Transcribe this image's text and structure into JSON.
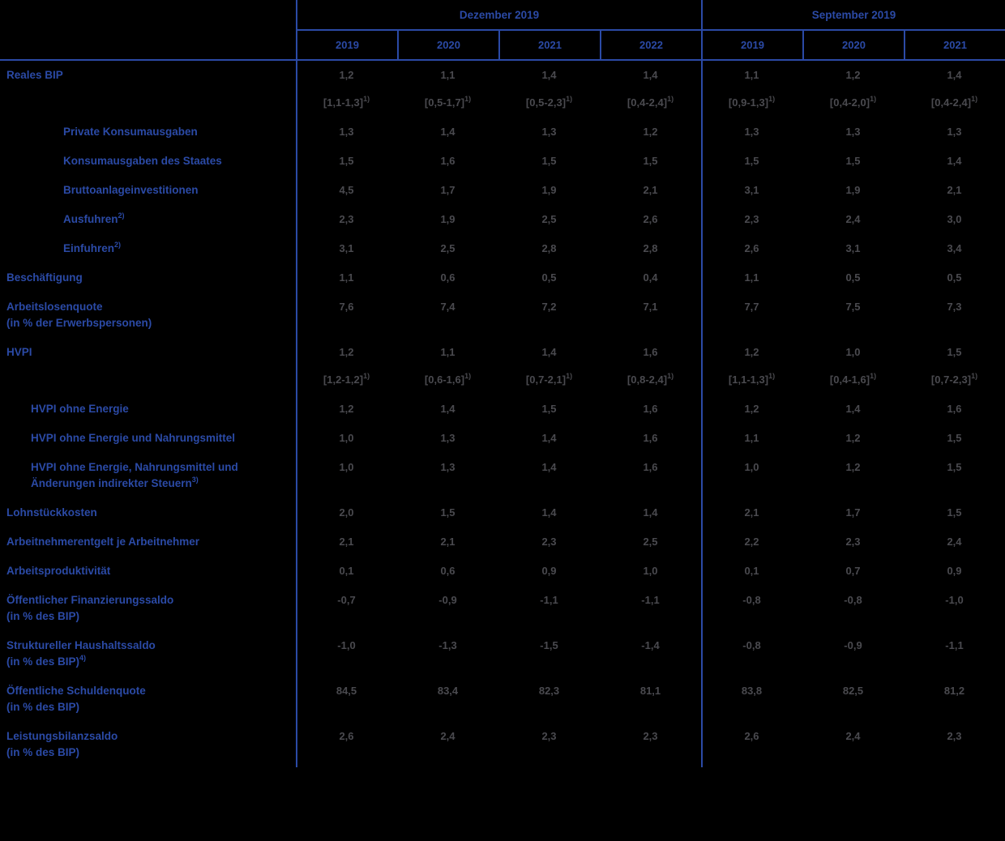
{
  "header": {
    "groups": [
      {
        "label": "Dezember 2019",
        "span": 4
      },
      {
        "label": "September 2019",
        "span": 3
      }
    ],
    "years": [
      "2019",
      "2020",
      "2021",
      "2022",
      "2019",
      "2020",
      "2021"
    ]
  },
  "rows": [
    {
      "type": "data",
      "indent": 0,
      "label": "Reales BIP",
      "values": [
        "1,2",
        "1,1",
        "1,4",
        "1,4",
        "1,1",
        "1,2",
        "1,4"
      ]
    },
    {
      "type": "range",
      "sup": "1)",
      "values": [
        "[1,1-1,3]",
        "[0,5-1,7]",
        "[0,5-2,3]",
        "[0,4-2,4]",
        "[0,9-1,3]",
        "[0,4-2,0]",
        "[0,4-2,4]"
      ]
    },
    {
      "type": "data",
      "indent": 1,
      "label": "Private Konsumausgaben",
      "values": [
        "1,3",
        "1,4",
        "1,3",
        "1,2",
        "1,3",
        "1,3",
        "1,3"
      ]
    },
    {
      "type": "data",
      "indent": 1,
      "label": "Konsumausgaben des Staates",
      "values": [
        "1,5",
        "1,6",
        "1,5",
        "1,5",
        "1,5",
        "1,5",
        "1,4"
      ]
    },
    {
      "type": "data",
      "indent": 1,
      "label": "Bruttoanlageinvestitionen",
      "values": [
        "4,5",
        "1,7",
        "1,9",
        "2,1",
        "3,1",
        "1,9",
        "2,1"
      ]
    },
    {
      "type": "data",
      "indent": 1,
      "label": "Ausfuhren",
      "label_sup": "2)",
      "values": [
        "2,3",
        "1,9",
        "2,5",
        "2,6",
        "2,3",
        "2,4",
        "3,0"
      ]
    },
    {
      "type": "data",
      "indent": 1,
      "label": "Einfuhren",
      "label_sup": "2)",
      "values": [
        "3,1",
        "2,5",
        "2,8",
        "2,8",
        "2,6",
        "3,1",
        "3,4"
      ]
    },
    {
      "type": "data",
      "indent": 0,
      "label": "Beschäftigung",
      "values": [
        "1,1",
        "0,6",
        "0,5",
        "0,4",
        "1,1",
        "0,5",
        "0,5"
      ]
    },
    {
      "type": "data",
      "indent": 0,
      "label": "Arbeitslosenquote",
      "label2": "(in % der Erwerbspersonen)",
      "values": [
        "7,6",
        "7,4",
        "7,2",
        "7,1",
        "7,7",
        "7,5",
        "7,3"
      ]
    },
    {
      "type": "data",
      "indent": 0,
      "label": "HVPI",
      "values": [
        "1,2",
        "1,1",
        "1,4",
        "1,6",
        "1,2",
        "1,0",
        "1,5"
      ]
    },
    {
      "type": "range",
      "sup": "1)",
      "values": [
        "[1,2-1,2]",
        "[0,6-1,6]",
        "[0,7-2,1]",
        "[0,8-2,4]",
        "[1,1-1,3]",
        "[0,4-1,6]",
        "[0,7-2,3]"
      ]
    },
    {
      "type": "data",
      "indent": 2,
      "label": "HVPI ohne Energie",
      "values": [
        "1,2",
        "1,4",
        "1,5",
        "1,6",
        "1,2",
        "1,4",
        "1,6"
      ]
    },
    {
      "type": "data",
      "indent": 2,
      "label": "HVPI ohne Energie und Nahrungsmittel",
      "values": [
        "1,0",
        "1,3",
        "1,4",
        "1,6",
        "1,1",
        "1,2",
        "1,5"
      ]
    },
    {
      "type": "data",
      "indent": 2,
      "label": "HVPI ohne Energie, Nahrungsmittel und",
      "label2": "Änderungen indirekter Steuern",
      "label2_sup": "3)",
      "values": [
        "1,0",
        "1,3",
        "1,4",
        "1,6",
        "1,0",
        "1,2",
        "1,5"
      ]
    },
    {
      "type": "data",
      "indent": 0,
      "label": "Lohnstückkosten",
      "values": [
        "2,0",
        "1,5",
        "1,4",
        "1,4",
        "2,1",
        "1,7",
        "1,5"
      ]
    },
    {
      "type": "data",
      "indent": 0,
      "label": "Arbeitnehmerentgelt je Arbeitnehmer",
      "values": [
        "2,1",
        "2,1",
        "2,3",
        "2,5",
        "2,2",
        "2,3",
        "2,4"
      ]
    },
    {
      "type": "data",
      "indent": 0,
      "label": "Arbeitsproduktivität",
      "values": [
        "0,1",
        "0,6",
        "0,9",
        "1,0",
        "0,1",
        "0,7",
        "0,9"
      ]
    },
    {
      "type": "data",
      "indent": 0,
      "label": "Öffentlicher Finanzierungssaldo",
      "label2": "(in % des BIP)",
      "values": [
        "-0,7",
        "-0,9",
        "-1,1",
        "-1,1",
        "-0,8",
        "-0,8",
        "-1,0"
      ]
    },
    {
      "type": "data",
      "indent": 0,
      "label": "Struktureller Haushaltssaldo",
      "label2": "(in % des BIP)",
      "label2_sup": "4)",
      "values": [
        "-1,0",
        "-1,3",
        "-1,5",
        "-1,4",
        "-0,8",
        "-0,9",
        "-1,1"
      ]
    },
    {
      "type": "data",
      "indent": 0,
      "label": "Öffentliche Schuldenquote",
      "label2": "(in % des BIP)",
      "values": [
        "84,5",
        "83,4",
        "82,3",
        "81,1",
        "83,8",
        "82,5",
        "81,2"
      ]
    },
    {
      "type": "data",
      "indent": 0,
      "label": "Leistungsbilanzsaldo",
      "label2": "(in % des BIP)",
      "values": [
        "2,6",
        "2,4",
        "2,3",
        "2,3",
        "2,6",
        "2,4",
        "2,3"
      ]
    }
  ],
  "colors": {
    "background": "#000000",
    "accent_blue": "#2b4aa6",
    "value_gray": "#4a4a4f"
  }
}
